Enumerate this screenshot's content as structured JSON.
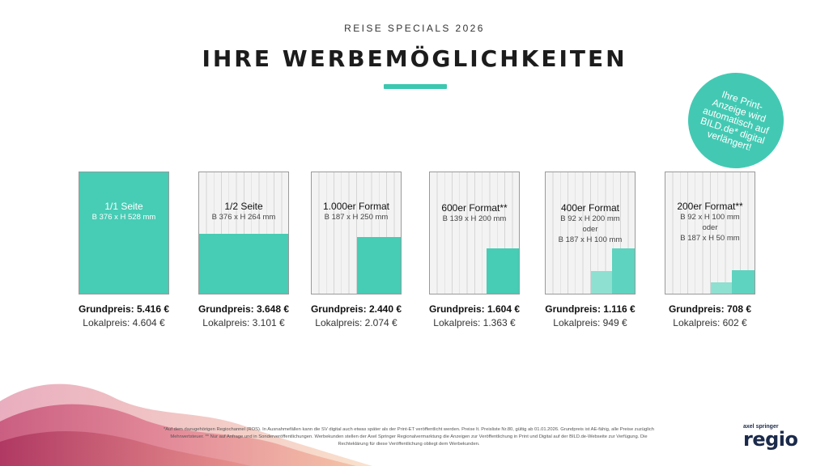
{
  "header": {
    "supertitle": "REISE SPECIALS 2026",
    "title": "IHRE WERBEMÖGLICHKEITEN"
  },
  "badge": {
    "text": "Ihre Print-Anzeige wird automatisch auf BILD.de* digital verlängert!"
  },
  "formats": [
    {
      "name": "1/1 Seite",
      "dims": [
        "B 376 x H 528 mm"
      ],
      "grundpreis": "Grundpreis: 5.416 €",
      "lokalpreis": "Lokalpreis: 4.604 €"
    },
    {
      "name": "1/2 Seite",
      "dims": [
        "B 376 x H 264 mm"
      ],
      "grundpreis": "Grundpreis: 3.648 €",
      "lokalpreis": "Lokalpreis: 3.101 €"
    },
    {
      "name": "1.000er Format",
      "dims": [
        "B 187 x H 250 mm"
      ],
      "grundpreis": "Grundpreis: 2.440 €",
      "lokalpreis": "Lokalpreis: 2.074 €"
    },
    {
      "name": "600er Format**",
      "dims": [
        "B 139 x H 200 mm"
      ],
      "grundpreis": "Grundpreis: 1.604 €",
      "lokalpreis": "Lokalpreis: 1.363 €"
    },
    {
      "name": "400er Format",
      "dims": [
        "B 92 x H 200 mm",
        "oder",
        "B 187 x H 100 mm"
      ],
      "grundpreis": "Grundpreis: 1.116 €",
      "lokalpreis": "Lokalpreis: 949 €"
    },
    {
      "name": "200er Format**",
      "dims": [
        "B 92 x H 100 mm",
        "oder",
        "B 187 x H 50 mm"
      ],
      "grundpreis": "Grundpreis: 708 €",
      "lokalpreis": "Lokalpreis: 602 €"
    }
  ],
  "footnote": "*Auf dem dazugehörigen Regiochannel (ROS). In Ausnahmefällen kann die SV digital auch etwas später als der Print-ET veröffentlicht werden. Preise lt. Preisliste Nr.80, gültig ab 01.01.2026. Grundpreis ist AE-fähig, alle Preise zuzüglich Mehrwertsteuer. ** Nur auf Anfrage und in Sonderveröffentlichungen. Werbekunden stellen der Axel Springer Regionalvermarktung die Anzeigen zur Veröffentlichung in Print und Digital auf der BILD.de-Webseite zur Verfügung. Die Rechteklärung für diese Veröffentlichung obliegt dem Werbekunden.",
  "logo": {
    "small": "axel springer",
    "big": "regio"
  },
  "colors": {
    "accent": "#3cc7b0",
    "fill": "#47ccb5",
    "text": "#1a1a1a"
  }
}
